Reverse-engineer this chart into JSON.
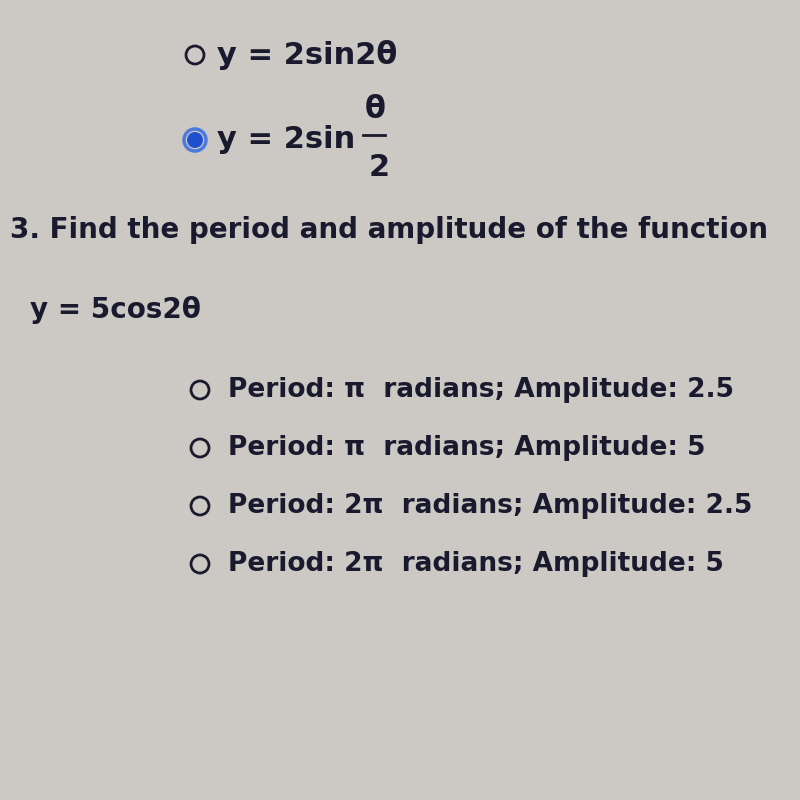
{
  "background_color": "#ccc8c4",
  "title_text": "3. Find the period and amplitude of the function",
  "equation": "y = 5cos2θ",
  "top_option1_text": "y = 2sin2θ",
  "top_option2_text": "y = 2sin ",
  "top_option2_fraction_num": "θ",
  "top_option2_fraction_den": "2",
  "options": [
    "Period: π  radians; Amplitude: 2.5",
    "Period: π  radians; Amplitude: 5",
    "Period: 2π  radians; Amplitude: 2.5",
    "Period: 2π  radians; Amplitude: 5"
  ],
  "text_color": "#1a1a2e",
  "radio_color": "#1a1a2e",
  "selected_radio_fill": "#1e50d0",
  "selected_radio_ring": "#4a7ae0",
  "font_size_main": 20,
  "font_size_eq": 20,
  "font_size_options": 19,
  "font_size_top": 22
}
